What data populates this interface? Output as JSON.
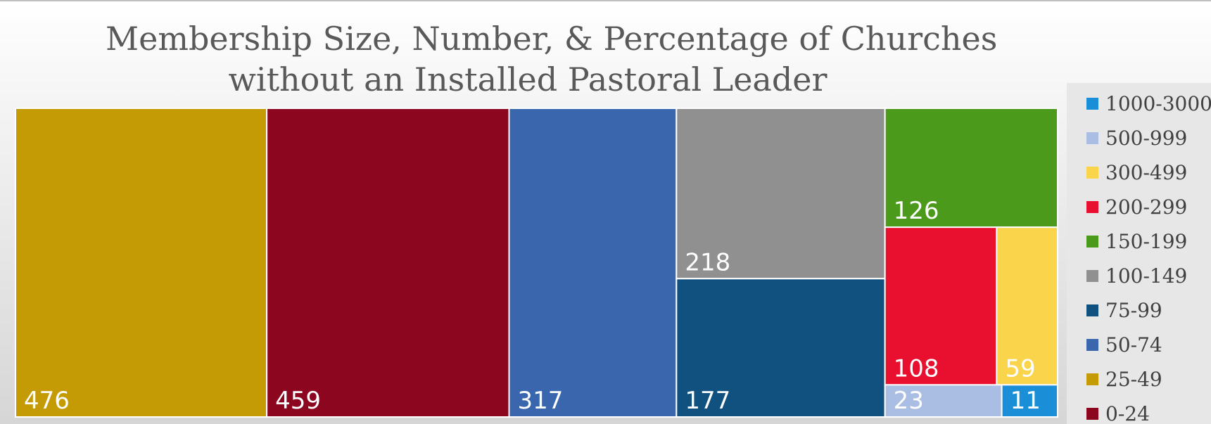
{
  "chart_data": {
    "type": "treemap",
    "title": [
      "Membership Size, Number, & Percentage of Churches",
      "without an Installed Pastoral Leader"
    ],
    "tiles": [
      {
        "category": "25-49",
        "value": 476,
        "color": "#c49a05"
      },
      {
        "category": "0-24",
        "value": 459,
        "color": "#8b061e"
      },
      {
        "category": "50-74",
        "value": 317,
        "color": "#3a66ae"
      },
      {
        "category": "100-149",
        "value": 218,
        "color": "#909090"
      },
      {
        "category": "75-99",
        "value": 177,
        "color": "#10517f"
      },
      {
        "category": "150-199",
        "value": 126,
        "color": "#4c9a1c"
      },
      {
        "category": "200-299",
        "value": 108,
        "color": "#e8102e"
      },
      {
        "category": "300-499",
        "value": 59,
        "color": "#fad44a"
      },
      {
        "category": "500-999",
        "value": 23,
        "color": "#aabde2"
      },
      {
        "category": "1000-3000",
        "value": 11,
        "color": "#1a8fd8"
      }
    ],
    "legend": {
      "placement": "right",
      "items": [
        {
          "label": "1000-3000",
          "color": "#1a8fd8"
        },
        {
          "label": "500-999",
          "color": "#aabde2"
        },
        {
          "label": "300-499",
          "color": "#fad44a"
        },
        {
          "label": "200-299",
          "color": "#e8102e"
        },
        {
          "label": "150-199",
          "color": "#4c9a1c"
        },
        {
          "label": "100-149",
          "color": "#909090"
        },
        {
          "label": "75-99",
          "color": "#10517f"
        },
        {
          "label": "50-74",
          "color": "#3a66ae"
        },
        {
          "label": "25-49",
          "color": "#c49a05"
        },
        {
          "label": "0-24",
          "color": "#8b061e"
        }
      ]
    }
  }
}
